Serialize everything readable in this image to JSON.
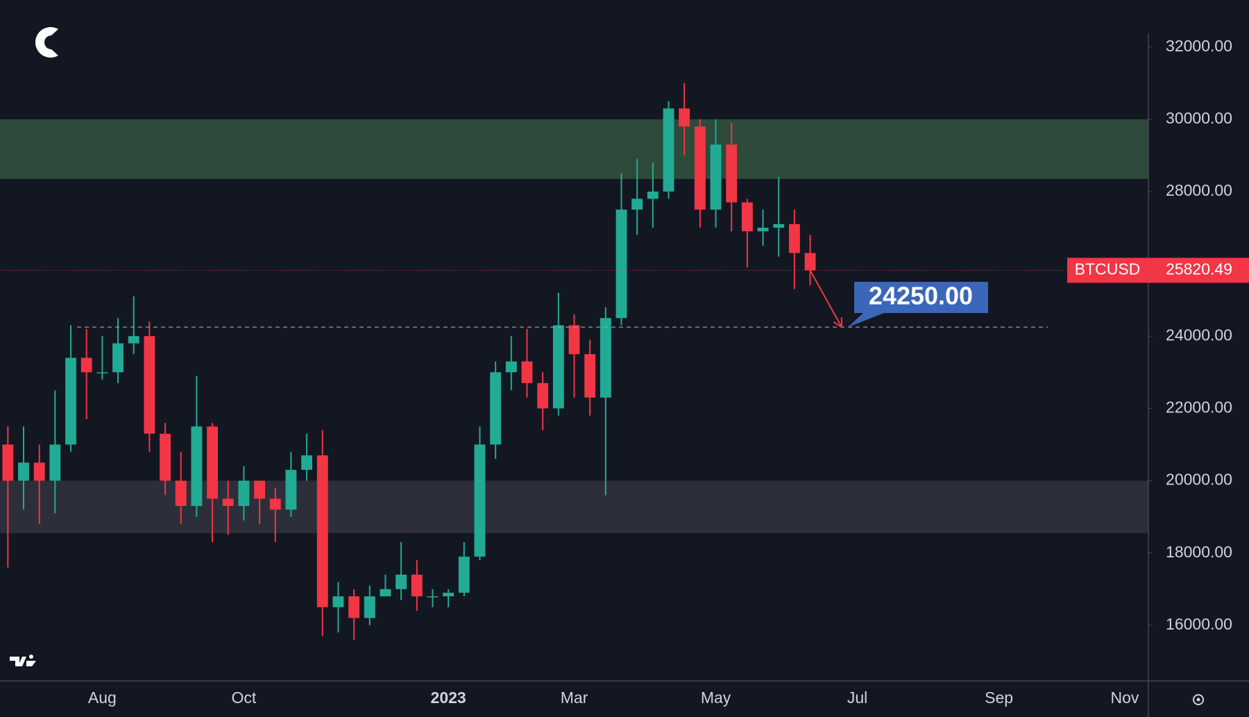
{
  "chart_data": {
    "type": "candlestick",
    "categories": [
      null,
      null,
      null,
      null,
      null,
      null,
      "Aug",
      null,
      null,
      null,
      null,
      null,
      null,
      null,
      null,
      "Oct",
      null,
      null,
      null,
      null,
      null,
      null,
      null,
      null,
      null,
      null,
      null,
      null,
      "2023",
      null,
      null,
      null,
      null,
      null,
      null,
      null,
      "Mar",
      null,
      null,
      null,
      null,
      null,
      null,
      null,
      null,
      "May",
      null,
      null,
      null,
      null,
      null,
      null,
      null,
      null,
      "Jul",
      null,
      null,
      null,
      null,
      null,
      null,
      null,
      null,
      "Sep",
      null,
      null,
      null,
      null,
      null,
      null,
      null,
      "Nov",
      null
    ],
    "open": [
      21000,
      20000,
      20500,
      20000,
      21000,
      23400,
      23000,
      23000,
      23800,
      24000,
      21300,
      20000,
      19300,
      21500,
      19500,
      19300,
      20000,
      19500,
      19200,
      20300,
      20700,
      16500,
      16800,
      16200,
      16800,
      17000,
      17400,
      16800,
      16800,
      16900,
      17900,
      21000,
      23000,
      23300,
      22700,
      22000,
      24300,
      23500,
      22300,
      24500,
      27500,
      27800,
      28000,
      30300,
      29800,
      27500,
      29300,
      27700,
      26900,
      27000,
      27100,
      26300,
      null,
      null,
      null,
      null,
      null,
      null,
      null,
      null,
      null,
      null,
      null,
      null,
      null,
      null,
      null,
      null,
      null,
      null,
      null,
      null,
      null
    ],
    "high": [
      21500,
      21500,
      21000,
      22500,
      24300,
      24200,
      24000,
      24500,
      25100,
      24400,
      21600,
      20800,
      22900,
      21600,
      20000,
      20400,
      20000,
      19800,
      20800,
      21300,
      21400,
      17200,
      17000,
      17100,
      17400,
      18300,
      17800,
      17000,
      17000,
      18300,
      21500,
      23300,
      24000,
      24200,
      23000,
      25200,
      24600,
      23900,
      24800,
      28500,
      28900,
      28800,
      30500,
      31000,
      30000,
      30000,
      29900,
      27800,
      27500,
      28400,
      27500,
      26800,
      null,
      null,
      null,
      null,
      null,
      null,
      null,
      null,
      null,
      null,
      null,
      null,
      null,
      null,
      null,
      null,
      null,
      null,
      null,
      null,
      null
    ],
    "low": [
      17600,
      19200,
      18800,
      19100,
      20800,
      21700,
      22800,
      22700,
      23500,
      20800,
      19600,
      18800,
      19000,
      18300,
      18500,
      18900,
      18800,
      18300,
      19000,
      20000,
      15700,
      15800,
      15600,
      16000,
      16800,
      16700,
      16400,
      16500,
      16500,
      16800,
      17800,
      20600,
      22500,
      22300,
      21400,
      21800,
      22300,
      21800,
      19600,
      24300,
      26800,
      27000,
      27800,
      29000,
      27000,
      27000,
      26900,
      25900,
      26500,
      26200,
      25300,
      25400,
      null,
      null,
      null,
      null,
      null,
      null,
      null,
      null,
      null,
      null,
      null,
      null,
      null,
      null,
      null,
      null,
      null,
      null,
      null,
      null,
      null
    ],
    "close": [
      20000,
      20500,
      20000,
      21000,
      23400,
      23000,
      23000,
      23800,
      24000,
      21300,
      20000,
      19300,
      21500,
      19500,
      19300,
      20000,
      19500,
      19200,
      20300,
      20700,
      16500,
      16800,
      16200,
      16800,
      17000,
      17400,
      16800,
      16800,
      16900,
      17900,
      21000,
      23000,
      23300,
      22700,
      22000,
      24300,
      23500,
      22300,
      24500,
      27500,
      27800,
      28000,
      30300,
      29800,
      27500,
      29300,
      27700,
      26900,
      27000,
      27100,
      26300,
      25820,
      null,
      null,
      null,
      null,
      null,
      null,
      null,
      null,
      null,
      null,
      null,
      null,
      null,
      null,
      null,
      null,
      null,
      null,
      null,
      null,
      null
    ],
    "up_color": "#22ab94",
    "down_color": "#f23645",
    "ylim": [
      14460,
      33300
    ],
    "yticks": [
      {
        "value": 16000,
        "label": "16000.00"
      },
      {
        "value": 18000,
        "label": "18000.00"
      },
      {
        "value": 20000,
        "label": "20000.00"
      },
      {
        "value": 22000,
        "label": "22000.00"
      },
      {
        "value": 24000,
        "label": "24000.00"
      },
      {
        "value": 28000,
        "label": "28000.00"
      },
      {
        "value": 30000,
        "label": "30000.00"
      },
      {
        "value": 32000,
        "label": "32000.00"
      }
    ],
    "zones": [
      {
        "low": 28350,
        "high": 30000,
        "color": "#2d4a3a"
      },
      {
        "low": 18550,
        "high": 20000,
        "color": "#2c2f3a"
      }
    ],
    "target": {
      "value": 24250,
      "label": "24250.00"
    },
    "last_price": {
      "name": "BTCUSD",
      "value": 25820.49,
      "label": "25820.49"
    }
  }
}
